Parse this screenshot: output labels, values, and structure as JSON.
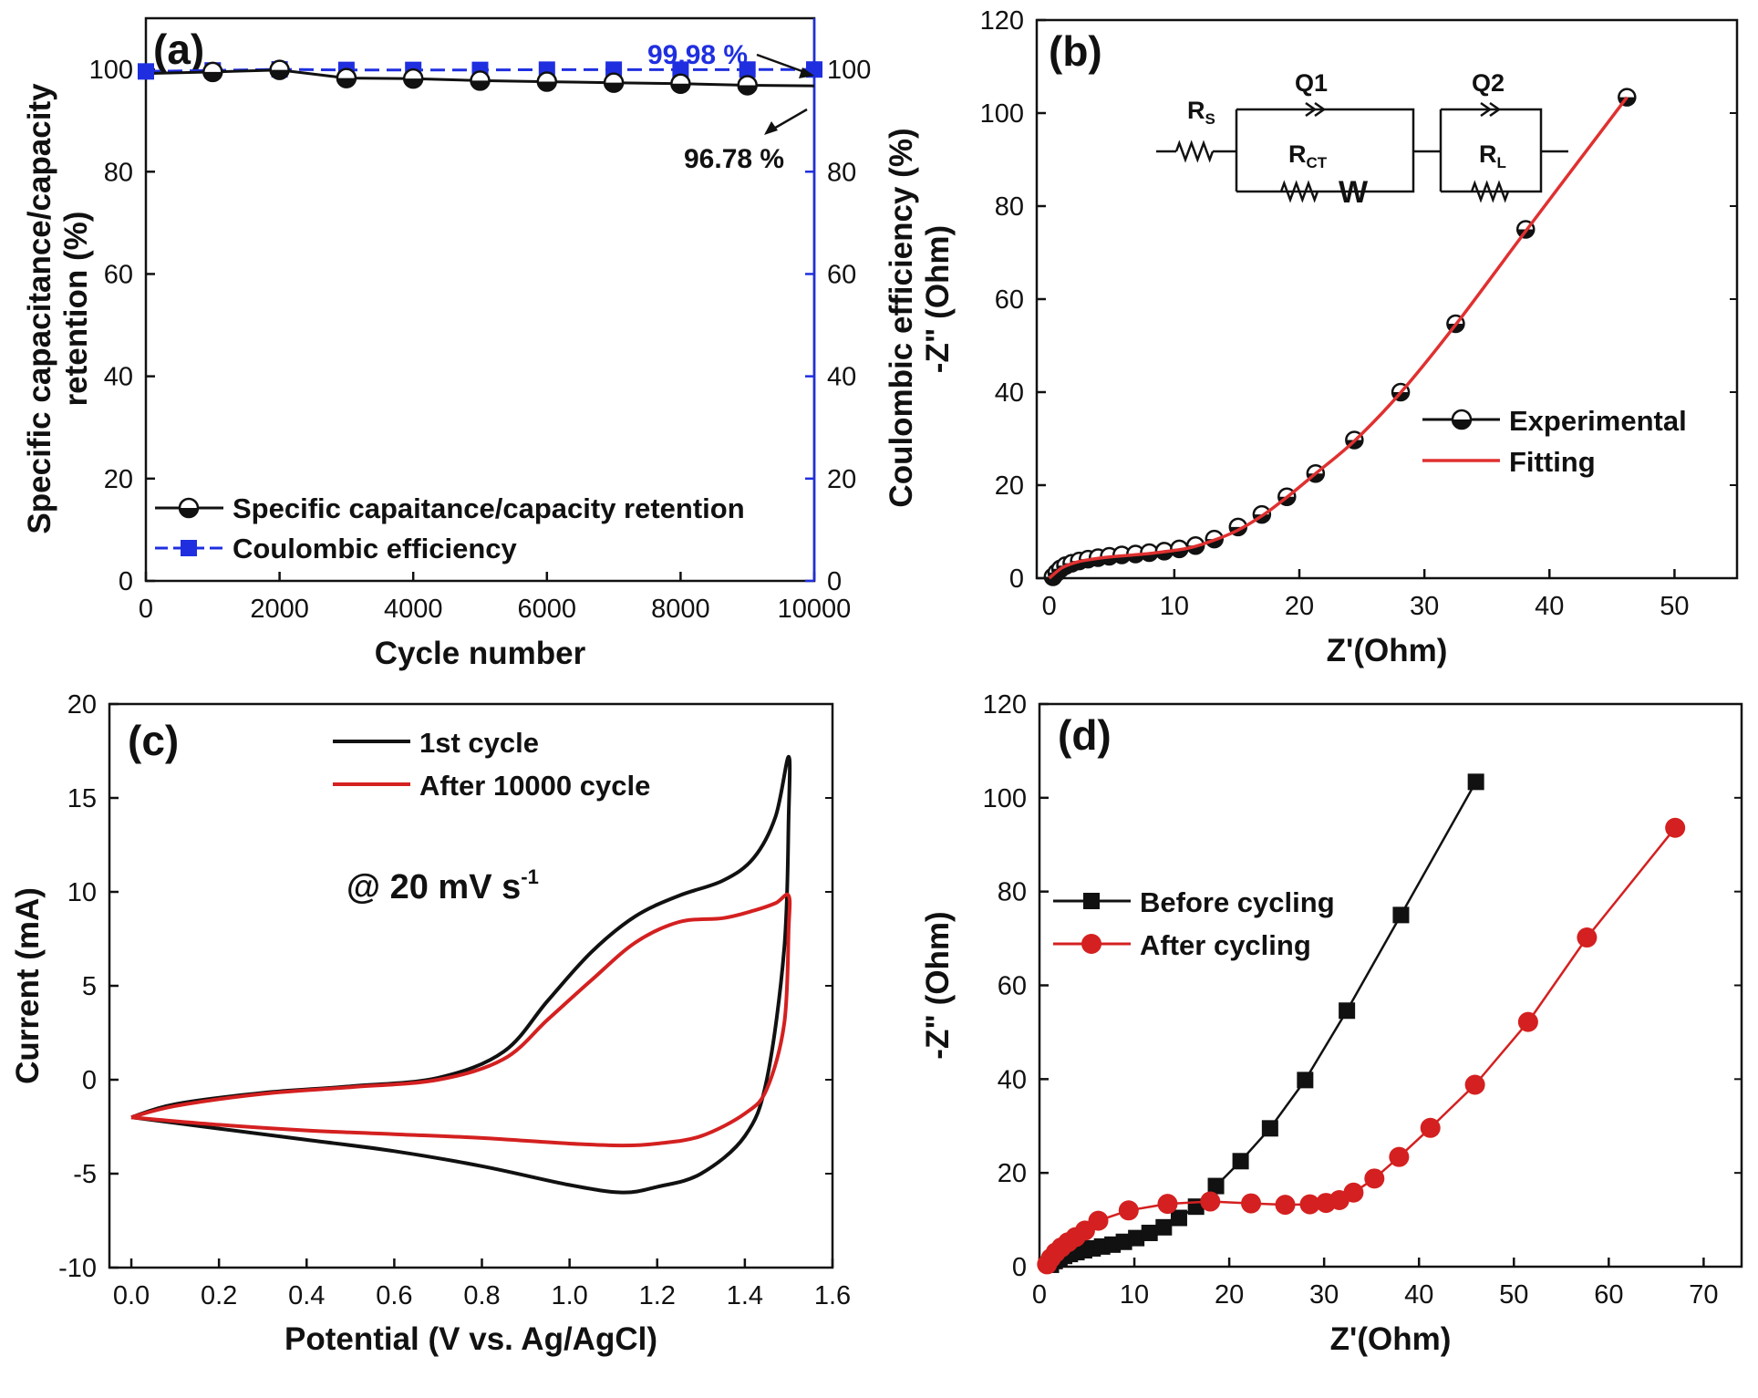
{
  "colors": {
    "black": "#111111",
    "red": "#d42020",
    "blue": "#1f2fe0",
    "fit_red": "#e03030"
  },
  "chart_data": [
    {
      "panel": "(a)",
      "type": "line",
      "xlabel": "Cycle number",
      "ylabel": "Specific capacitance/capacity retention (%)",
      "y2label": "Coulombic efficiency (%)",
      "xlim": [
        0,
        10000
      ],
      "ylim": [
        0,
        110
      ],
      "y2lim": [
        0,
        110
      ],
      "xticks": [
        0,
        2000,
        4000,
        6000,
        8000,
        10000
      ],
      "yticks": [
        0,
        20,
        40,
        60,
        80,
        100
      ],
      "y2ticks": [
        0,
        20,
        40,
        60,
        80,
        100
      ],
      "x": [
        0,
        1000,
        2000,
        3000,
        4000,
        5000,
        6000,
        7000,
        8000,
        9000,
        10000
      ],
      "series": [
        {
          "name": "Specific capaitance/capacity retention",
          "axis": "left",
          "marker": "half-circle",
          "color": "black",
          "values": [
            99.2,
            99.5,
            99.9,
            98.3,
            98.2,
            97.8,
            97.6,
            97.4,
            97.2,
            96.9,
            96.78
          ]
        },
        {
          "name": "Coulombic efficiency",
          "axis": "right",
          "marker": "square",
          "color": "blue",
          "dashed": true,
          "values": [
            99.6,
            99.8,
            100.0,
            99.9,
            99.9,
            99.9,
            99.95,
            99.95,
            99.95,
            99.97,
            99.98
          ]
        }
      ],
      "annotations": [
        "99.98 %",
        "96.78 %"
      ],
      "legend": "bottom-left"
    },
    {
      "panel": "(b)",
      "type": "scatter",
      "xlabel": "Z'(Ohm)",
      "ylabel": "-Z\" (Ohm)",
      "xlim": [
        -1,
        55
      ],
      "ylim": [
        0,
        120
      ],
      "xticks": [
        0,
        10,
        20,
        30,
        40,
        50
      ],
      "yticks": [
        0,
        20,
        40,
        60,
        80,
        100,
        120
      ],
      "series": [
        {
          "name": "Experimental",
          "marker": "half-circle",
          "color": "black",
          "points": [
            [
              0.3,
              0.3
            ],
            [
              0.6,
              1.2
            ],
            [
              0.9,
              2.0
            ],
            [
              1.3,
              2.7
            ],
            [
              1.8,
              3.2
            ],
            [
              2.4,
              3.7
            ],
            [
              3.1,
              4.1
            ],
            [
              3.9,
              4.4
            ],
            [
              4.8,
              4.7
            ],
            [
              5.8,
              5.0
            ],
            [
              6.9,
              5.2
            ],
            [
              8.0,
              5.5
            ],
            [
              9.2,
              5.8
            ],
            [
              10.4,
              6.3
            ],
            [
              11.7,
              7.0
            ],
            [
              13.2,
              8.4
            ],
            [
              15.1,
              11
            ],
            [
              17.0,
              13.7
            ],
            [
              19.0,
              17.5
            ],
            [
              21.3,
              22.5
            ],
            [
              24.4,
              29.7
            ],
            [
              28.1,
              40
            ],
            [
              32.5,
              54.7
            ],
            [
              38.1,
              75
            ],
            [
              46.2,
              103.4
            ]
          ]
        },
        {
          "name": "Fitting",
          "color": "red",
          "line": true,
          "points": [
            [
              0,
              0
            ],
            [
              1,
              2.2
            ],
            [
              2,
              3.3
            ],
            [
              3,
              3.9
            ],
            [
              5,
              4.6
            ],
            [
              8,
              5.3
            ],
            [
              11,
              6.4
            ],
            [
              13,
              8.0
            ],
            [
              15,
              10.2
            ],
            [
              17,
              13.4
            ],
            [
              19,
              17.4
            ],
            [
              21.3,
              22.5
            ],
            [
              24.4,
              29.5
            ],
            [
              28.1,
              39.9
            ],
            [
              32.5,
              54.5
            ],
            [
              38.1,
              74.6
            ],
            [
              46.2,
              103.4
            ]
          ]
        }
      ],
      "circuit": {
        "rs": "R",
        "rs_sub": "S",
        "q1": "Q1",
        "rct": "R",
        "rct_sub": "CT",
        "w": "W",
        "q2": "Q2",
        "rl": "R",
        "rl_sub": "L"
      },
      "legend": "right"
    },
    {
      "panel": "(c)",
      "type": "line",
      "xlabel": "Potential (V vs. Ag/AgCl)",
      "ylabel": "Current (mA)",
      "xlim": [
        -0.05,
        1.6
      ],
      "ylim": [
        -10,
        20
      ],
      "xticks": [
        0.0,
        0.2,
        0.4,
        0.6,
        0.8,
        1.0,
        1.2,
        1.4,
        1.6
      ],
      "yticks": [
        -10,
        -5,
        0,
        5,
        10,
        15,
        20
      ],
      "series": [
        {
          "name": "1st cycle",
          "color": "black",
          "points": [
            [
              0,
              -2
            ],
            [
              0.1,
              -1.3
            ],
            [
              0.3,
              -0.7
            ],
            [
              0.5,
              -0.35
            ],
            [
              0.7,
              0.1
            ],
            [
              0.85,
              1.5
            ],
            [
              0.95,
              4.2
            ],
            [
              1.05,
              6.8
            ],
            [
              1.15,
              8.7
            ],
            [
              1.25,
              9.8
            ],
            [
              1.35,
              10.6
            ],
            [
              1.42,
              11.8
            ],
            [
              1.47,
              14
            ],
            [
              1.5,
              17.2
            ],
            [
              1.5,
              14
            ],
            [
              1.49,
              7
            ],
            [
              1.45,
              0
            ],
            [
              1.4,
              -3
            ],
            [
              1.3,
              -5
            ],
            [
              1.2,
              -5.7
            ],
            [
              1.12,
              -6
            ],
            [
              1.0,
              -5.6
            ],
            [
              0.8,
              -4.6
            ],
            [
              0.6,
              -3.8
            ],
            [
              0.4,
              -3.2
            ],
            [
              0.2,
              -2.6
            ],
            [
              0,
              -2
            ]
          ]
        },
        {
          "name": "After 10000 cycle",
          "color": "red",
          "points": [
            [
              0,
              -2
            ],
            [
              0.1,
              -1.4
            ],
            [
              0.3,
              -0.75
            ],
            [
              0.5,
              -0.4
            ],
            [
              0.7,
              0
            ],
            [
              0.85,
              1.1
            ],
            [
              0.95,
              3.2
            ],
            [
              1.05,
              5.3
            ],
            [
              1.15,
              7.3
            ],
            [
              1.25,
              8.4
            ],
            [
              1.35,
              8.6
            ],
            [
              1.42,
              9.0
            ],
            [
              1.47,
              9.4
            ],
            [
              1.5,
              9.8
            ],
            [
              1.5,
              8
            ],
            [
              1.49,
              3
            ],
            [
              1.45,
              -0.5
            ],
            [
              1.4,
              -1.8
            ],
            [
              1.3,
              -3.0
            ],
            [
              1.2,
              -3.4
            ],
            [
              1.12,
              -3.5
            ],
            [
              1.0,
              -3.4
            ],
            [
              0.8,
              -3.1
            ],
            [
              0.6,
              -2.9
            ],
            [
              0.4,
              -2.7
            ],
            [
              0.2,
              -2.4
            ],
            [
              0,
              -2
            ]
          ]
        }
      ],
      "annotation": {
        "text": "@ 20 mV s",
        "sup": "-1"
      },
      "legend": "top"
    },
    {
      "panel": "(d)",
      "type": "line",
      "xlabel": "Z'(Ohm)",
      "ylabel": "-Z\" (Ohm)",
      "xlim": [
        0,
        74
      ],
      "ylim": [
        0,
        120
      ],
      "xticks": [
        0,
        10,
        20,
        30,
        40,
        50,
        60,
        70
      ],
      "yticks": [
        0,
        20,
        40,
        60,
        80,
        100,
        120
      ],
      "series": [
        {
          "name": "Before cycling",
          "marker": "square",
          "color": "black",
          "points": [
            [
              1.2,
              0.4
            ],
            [
              1.6,
              1.2
            ],
            [
              2.1,
              1.8
            ],
            [
              2.6,
              2.3
            ],
            [
              3.2,
              2.7
            ],
            [
              3.9,
              3.1
            ],
            [
              4.7,
              3.5
            ],
            [
              5.6,
              3.9
            ],
            [
              6.6,
              4.3
            ],
            [
              7.7,
              4.7
            ],
            [
              8.9,
              5.3
            ],
            [
              10.2,
              6.1
            ],
            [
              11.6,
              7.2
            ],
            [
              13.1,
              8.4
            ],
            [
              14.7,
              10.4
            ],
            [
              16.5,
              12.8
            ],
            [
              18.6,
              17.2
            ],
            [
              21.2,
              22.5
            ],
            [
              24.3,
              29.5
            ],
            [
              28.0,
              39.8
            ],
            [
              32.4,
              54.6
            ],
            [
              38.1,
              75
            ],
            [
              46.0,
              103.4
            ]
          ]
        },
        {
          "name": "After cycling",
          "marker": "circle",
          "color": "red",
          "points": [
            [
              0.8,
              0.5
            ],
            [
              1.2,
              1.8
            ],
            [
              1.7,
              3.0
            ],
            [
              2.3,
              4.1
            ],
            [
              3.0,
              5.2
            ],
            [
              3.8,
              6.3
            ],
            [
              4.8,
              7.7
            ],
            [
              6.2,
              9.8
            ],
            [
              9.4,
              12.0
            ],
            [
              13.5,
              13.4
            ],
            [
              18.0,
              13.9
            ],
            [
              22.3,
              13.5
            ],
            [
              25.9,
              13.2
            ],
            [
              28.5,
              13.3
            ],
            [
              30.2,
              13.6
            ],
            [
              31.6,
              14.2
            ],
            [
              33.1,
              15.8
            ],
            [
              35.3,
              18.8
            ],
            [
              37.9,
              23.4
            ],
            [
              41.2,
              29.6
            ],
            [
              45.9,
              38.8
            ],
            [
              51.5,
              52.2
            ],
            [
              57.7,
              70.2
            ],
            [
              67.0,
              93.6
            ]
          ]
        }
      ],
      "legend": "left"
    }
  ]
}
